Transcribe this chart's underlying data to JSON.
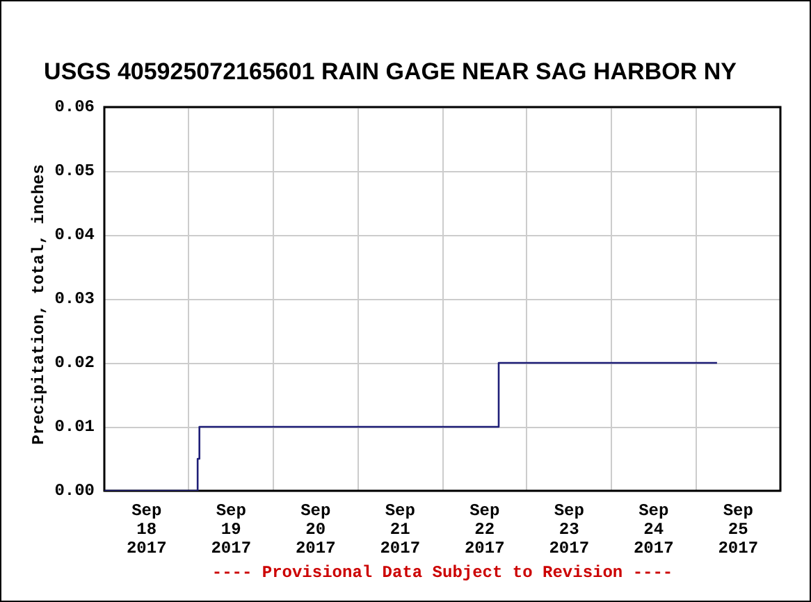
{
  "chart_data": {
    "type": "step",
    "title": "USGS 405925072165601 RAIN GAGE NEAR SAG HARBOR NY",
    "ylabel": "Precipitation, total, inches",
    "annotations": [
      "---- Provisional Data Subject to Revision ----"
    ],
    "x": [
      "2017-09-18T00:00",
      "2017-09-19T02:30",
      "2017-09-19T03:00",
      "2017-09-22T16:00",
      "2017-09-25T06:00"
    ],
    "series": [
      {
        "color": "#1f1f78",
        "values": [
          0,
          0.005,
          0.01,
          0.02,
          0.02
        ]
      }
    ],
    "xlim": [
      "2017-09-18T00:00",
      "2017-09-26T00:00"
    ],
    "xticks": [
      {
        "value": "2017-09-18T12:00",
        "label": "Sep\n18\n2017"
      },
      {
        "value": "2017-09-19T00:00",
        "label": null
      },
      {
        "value": "2017-09-19T12:00",
        "label": "Sep\n19\n2017"
      },
      {
        "value": "2017-09-20T00:00",
        "label": null
      },
      {
        "value": "2017-09-20T12:00",
        "label": "Sep\n20\n2017"
      },
      {
        "value": "2017-09-21T00:00",
        "label": null
      },
      {
        "value": "2017-09-21T12:00",
        "label": "Sep\n21\n2017"
      },
      {
        "value": "2017-09-22T00:00",
        "label": null
      },
      {
        "value": "2017-09-22T12:00",
        "label": "Sep\n22\n2017"
      },
      {
        "value": "2017-09-23T00:00",
        "label": null
      },
      {
        "value": "2017-09-23T12:00",
        "label": "Sep\n23\n2017"
      },
      {
        "value": "2017-09-24T00:00",
        "label": null
      },
      {
        "value": "2017-09-24T12:00",
        "label": "Sep\n24\n2017"
      },
      {
        "value": "2017-09-25T00:00",
        "label": null
      },
      {
        "value": "2017-09-25T12:00",
        "label": "Sep\n25\n2017"
      }
    ],
    "ylim": [
      0,
      0.06
    ],
    "yticks": [
      {
        "value": 0,
        "label": "0.00"
      },
      0.01,
      0.02,
      0.03,
      0.04,
      0.05,
      0.06
    ],
    "grid": true,
    "marker": "none",
    "line_style": "solid"
  }
}
